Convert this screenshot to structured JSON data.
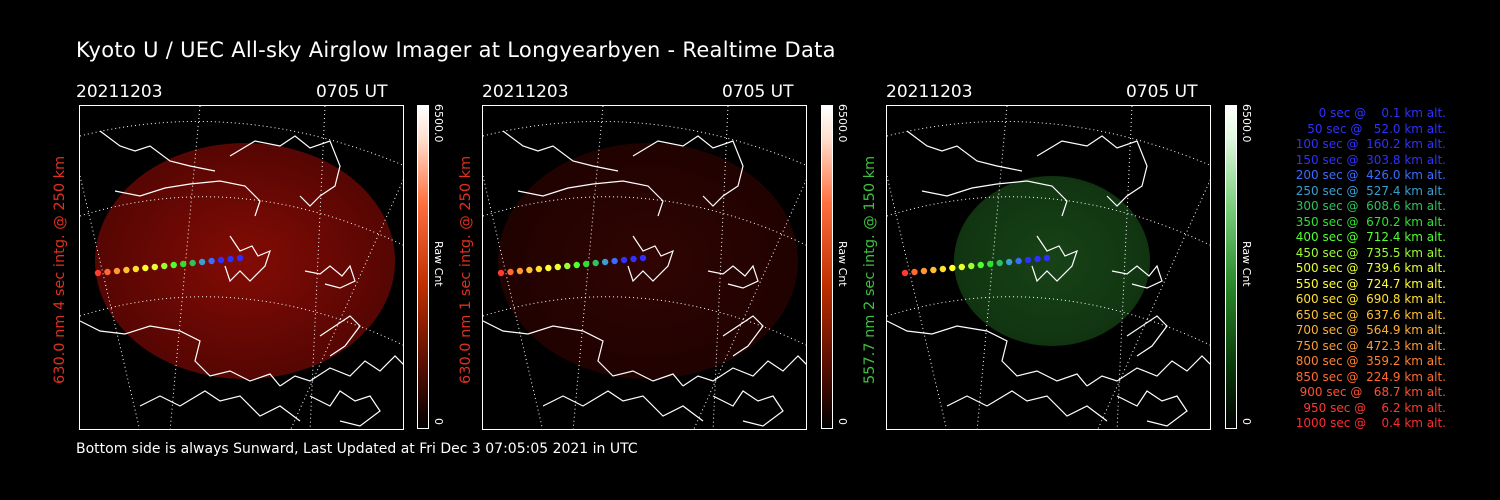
{
  "title": "Kyoto U / UEC All-sky Airglow Imager at Longyearbyen - Realtime Data",
  "footer": "Bottom side is always Sunward, Last Updated at Fri Dec  3 07:05:05 2021 in UTC",
  "panels": [
    {
      "date": "20211203",
      "time": "0705 UT",
      "label": "630.0 nm 4 sec intg. @ 250 km",
      "label_color": "#e03020",
      "cbar_max": "6500.0",
      "cbar_min": "0",
      "cbar_unit": "Raw Cnt",
      "tint": "red",
      "brightness": "high"
    },
    {
      "date": "20211203",
      "time": "0705 UT",
      "label": "630.0 nm 1 sec intg. @ 250 km",
      "label_color": "#e03020",
      "cbar_max": "6500.0",
      "cbar_min": "0",
      "cbar_unit": "Raw Cnt",
      "tint": "red",
      "brightness": "low"
    },
    {
      "date": "20211203",
      "time": "0705 UT",
      "label": "557.7 nm 2 sec intg. @ 150 km",
      "label_color": "#40c040",
      "cbar_max": "6500.0",
      "cbar_min": "0",
      "cbar_unit": "Raw Cnt",
      "tint": "green",
      "brightness": "low"
    }
  ],
  "legend": [
    {
      "text": "   0 sec @    0.1 km alt.",
      "color": "#3030ff"
    },
    {
      "text": "  50 sec @   52.0 km alt.",
      "color": "#3030ff"
    },
    {
      "text": " 100 sec @  160.2 km alt.",
      "color": "#3030ff"
    },
    {
      "text": " 150 sec @  303.8 km alt.",
      "color": "#3030ff"
    },
    {
      "text": " 200 sec @  426.0 km alt.",
      "color": "#3a6cff"
    },
    {
      "text": " 250 sec @  527.4 km alt.",
      "color": "#3a9fd0"
    },
    {
      "text": " 300 sec @  608.6 km alt.",
      "color": "#30c060"
    },
    {
      "text": " 350 sec @  670.2 km alt.",
      "color": "#30e030"
    },
    {
      "text": " 400 sec @  712.4 km alt.",
      "color": "#50ff30"
    },
    {
      "text": " 450 sec @  735.5 km alt.",
      "color": "#9aff30"
    },
    {
      "text": " 500 sec @  739.6 km alt.",
      "color": "#e6ff30"
    },
    {
      "text": " 550 sec @  724.7 km alt.",
      "color": "#ffff30"
    },
    {
      "text": " 600 sec @  690.8 km alt.",
      "color": "#ffe030"
    },
    {
      "text": " 650 sec @  637.6 km alt.",
      "color": "#ffc030"
    },
    {
      "text": " 700 sec @  564.9 km alt.",
      "color": "#ffb030"
    },
    {
      "text": " 750 sec @  472.3 km alt.",
      "color": "#ff9830"
    },
    {
      "text": " 800 sec @  359.2 km alt.",
      "color": "#ff8030"
    },
    {
      "text": " 850 sec @  224.9 km alt.",
      "color": "#ff6a30"
    },
    {
      "text": " 900 sec @   68.7 km alt.",
      "color": "#ff5030"
    },
    {
      "text": " 950 sec @    6.2 km alt.",
      "color": "#ff3a30"
    },
    {
      "text": "1000 sec @    0.4 km alt.",
      "color": "#ff2a30"
    }
  ]
}
